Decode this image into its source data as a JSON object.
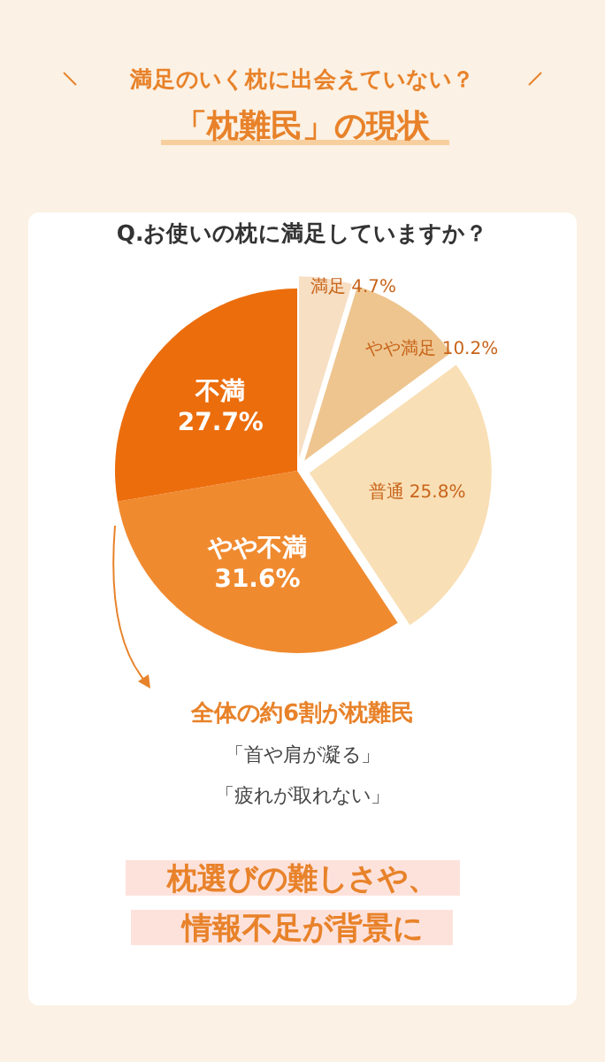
{
  "chart_data": {
    "type": "pie",
    "title": "満足のいく枕に出会えていない？",
    "subtitle": "「枕難民」の現状",
    "categories": [
      "満足",
      "やや満足",
      "普通",
      "やや不満",
      "不満"
    ],
    "values": [
      4.7,
      10.2,
      25.8,
      31.6,
      27.7
    ],
    "value_labels": [
      "4.7%",
      "10.2%",
      "25.8%",
      "31.6%",
      "27.7%"
    ],
    "colors": [
      "#f7dfc4",
      "#eec58f",
      "#f9dfb5",
      "#f08a2f",
      "#ec6d0c"
    ],
    "annotations": [
      "Q.お使いの枕に満足していますか？",
      "全体の約6割が枕難民",
      "「首や肩が凝る」",
      "「疲れが取れない」",
      "枕選びの難しさや、",
      "情報不足が背景に"
    ]
  }
}
